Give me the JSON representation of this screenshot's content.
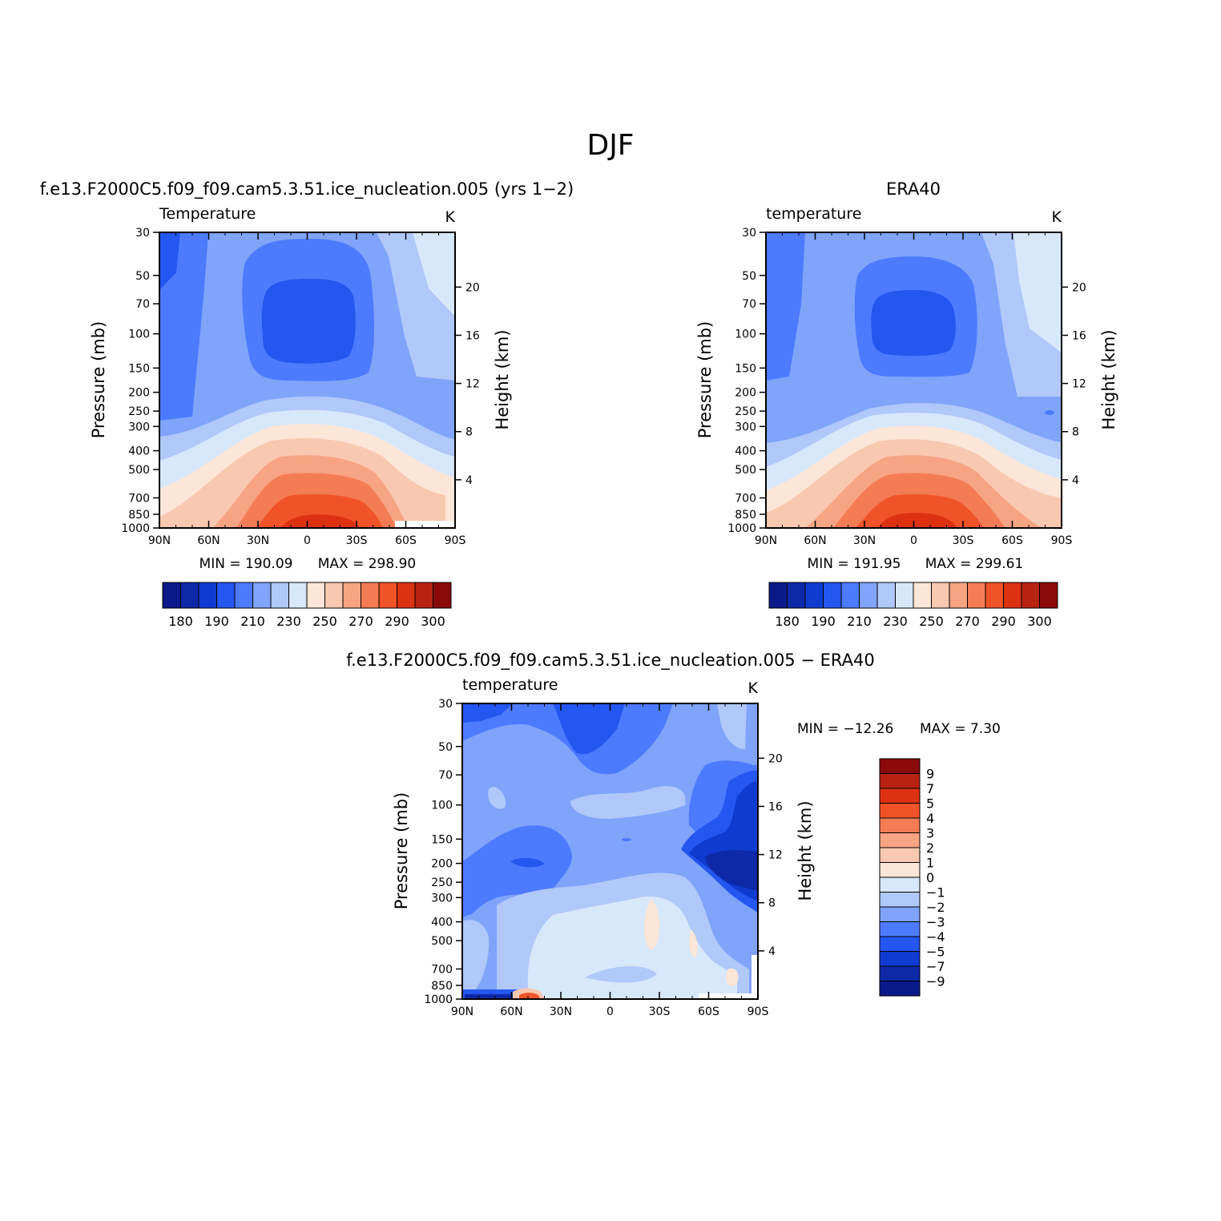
{
  "figure": {
    "title": "DJF"
  },
  "chart_data": [
    {
      "type": "heatmap",
      "id": "model",
      "title": "f.e13.F2000C5.f09_f09.cam5.3.51.ice_nucleation.005 (yrs 1−2)",
      "subtitle_left": "Temperature",
      "subtitle_right": "K",
      "xlabel": "",
      "ylabel": "Pressure (mb)",
      "ylabel_right": "Height (km)",
      "x_ticks": [
        "90N",
        "60N",
        "30N",
        "0",
        "30S",
        "60S",
        "90S"
      ],
      "x_tick_values": [
        90,
        60,
        30,
        0,
        -30,
        -60,
        -90
      ],
      "y_ticks": [
        "30",
        "50",
        "70",
        "100",
        "150",
        "200",
        "250",
        "300",
        "400",
        "500",
        "700",
        "850",
        "1000"
      ],
      "y_tick_values": [
        30,
        50,
        70,
        100,
        150,
        200,
        250,
        300,
        400,
        500,
        700,
        850,
        1000
      ],
      "y_scale": "log",
      "y_right_ticks": [
        "20",
        "16",
        "12",
        "8",
        "4"
      ],
      "y_right_tick_values": [
        20,
        16,
        12,
        8,
        4
      ],
      "min_label": "MIN = 190.09",
      "max_label": "MAX = 298.90",
      "min": 190.09,
      "max": 298.9,
      "colorbar": {
        "orientation": "horizontal",
        "labels": [
          "180",
          "190",
          "210",
          "230",
          "250",
          "270",
          "290",
          "300"
        ],
        "colors": [
          "#0a1a8a",
          "#0d29a8",
          "#0f3bd0",
          "#2456f0",
          "#4d7bff",
          "#7fa4fa",
          "#b0c8fa",
          "#d8e8fb",
          "#fce6d8",
          "#f9c8b0",
          "#f7a484",
          "#f47c54",
          "#f15328",
          "#dd3212",
          "#b82210",
          "#8a0a0a"
        ]
      }
    },
    {
      "type": "heatmap",
      "id": "obs",
      "title": "ERA40",
      "subtitle_left": "temperature",
      "subtitle_right": "K",
      "xlabel": "",
      "ylabel": "Pressure (mb)",
      "ylabel_right": "Height (km)",
      "x_ticks": [
        "90N",
        "60N",
        "30N",
        "0",
        "30S",
        "60S",
        "90S"
      ],
      "x_tick_values": [
        90,
        60,
        30,
        0,
        -30,
        -60,
        -90
      ],
      "y_ticks": [
        "30",
        "50",
        "70",
        "100",
        "150",
        "200",
        "250",
        "300",
        "400",
        "500",
        "700",
        "850",
        "1000"
      ],
      "y_tick_values": [
        30,
        50,
        70,
        100,
        150,
        200,
        250,
        300,
        400,
        500,
        700,
        850,
        1000
      ],
      "y_scale": "log",
      "y_right_ticks": [
        "20",
        "16",
        "12",
        "8",
        "4"
      ],
      "y_right_tick_values": [
        20,
        16,
        12,
        8,
        4
      ],
      "min_label": "MIN = 191.95",
      "max_label": "MAX = 299.61",
      "min": 191.95,
      "max": 299.61,
      "colorbar": {
        "orientation": "horizontal",
        "labels": [
          "180",
          "190",
          "210",
          "230",
          "250",
          "270",
          "290",
          "300"
        ],
        "colors": [
          "#0a1a8a",
          "#0d29a8",
          "#0f3bd0",
          "#2456f0",
          "#4d7bff",
          "#7fa4fa",
          "#b0c8fa",
          "#d8e8fb",
          "#fce6d8",
          "#f9c8b0",
          "#f7a484",
          "#f47c54",
          "#f15328",
          "#dd3212",
          "#b82210",
          "#8a0a0a"
        ]
      }
    },
    {
      "type": "heatmap",
      "id": "diff",
      "title": "f.e13.F2000C5.f09_f09.cam5.3.51.ice_nucleation.005 − ERA40",
      "subtitle_left": "temperature",
      "subtitle_right": "K",
      "xlabel": "",
      "ylabel": "Pressure (mb)",
      "ylabel_right": "Height (km)",
      "x_ticks": [
        "90N",
        "60N",
        "30N",
        "0",
        "30S",
        "60S",
        "90S"
      ],
      "x_tick_values": [
        90,
        60,
        30,
        0,
        -30,
        -60,
        -90
      ],
      "y_ticks": [
        "30",
        "50",
        "70",
        "100",
        "150",
        "200",
        "250",
        "300",
        "400",
        "500",
        "700",
        "850",
        "1000"
      ],
      "y_tick_values": [
        30,
        50,
        70,
        100,
        150,
        200,
        250,
        300,
        400,
        500,
        700,
        850,
        1000
      ],
      "y_scale": "log",
      "y_right_ticks": [
        "20",
        "16",
        "12",
        "8",
        "4"
      ],
      "y_right_tick_values": [
        20,
        16,
        12,
        8,
        4
      ],
      "min_label": "MIN = −12.26",
      "max_label": "MAX = 7.30",
      "min": -12.26,
      "max": 7.3,
      "colorbar": {
        "orientation": "vertical",
        "labels": [
          "9",
          "7",
          "5",
          "4",
          "3",
          "2",
          "1",
          "0",
          "−1",
          "−2",
          "−3",
          "−4",
          "−5",
          "−7",
          "−9"
        ],
        "colors": [
          "#8a0a0a",
          "#b82210",
          "#dd3212",
          "#f15328",
          "#f47c54",
          "#f7a484",
          "#f9c8b0",
          "#fce6d8",
          "#d8e8fb",
          "#b0c8fa",
          "#7fa4fa",
          "#4d7bff",
          "#2456f0",
          "#0f3bd0",
          "#0d29a8",
          "#0a1a8a"
        ]
      }
    }
  ]
}
